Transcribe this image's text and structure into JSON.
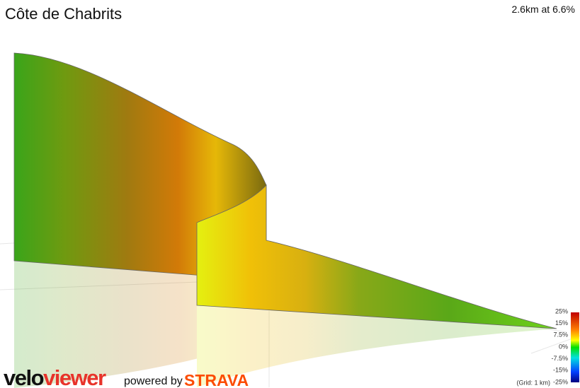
{
  "header": {
    "title": "Côte de Chabrits",
    "summary": "2.6km at 6.6%"
  },
  "legend": {
    "labels": [
      "25%",
      "15%",
      "7.5%",
      "0%",
      "-7.5%",
      "-15%",
      "-25%"
    ],
    "grid_note": "(Grid: 1 km)"
  },
  "footer": {
    "logo_velo": "velo",
    "logo_viewer": "viewer",
    "powered_by": "powered by",
    "strava": "STRAVA"
  }
}
